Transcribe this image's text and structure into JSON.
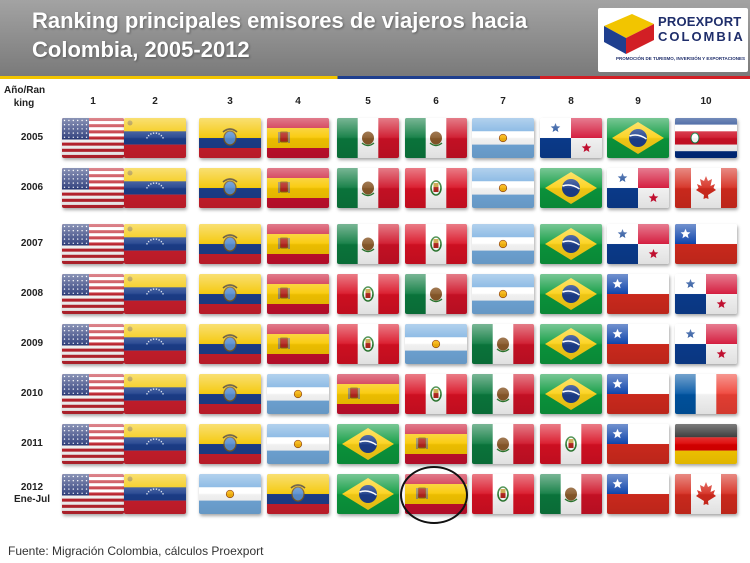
{
  "header": {
    "title": "Ranking principales emisores de viajeros hacia Colombia, 2005-2012",
    "logo_name": "PROEXPORT",
    "logo_sub": "COLOMBIA",
    "logo_tagline": "PROMOCIÓN DE TURISMO, INVERSIÓN Y EXPORTACIONES"
  },
  "table": {
    "corner_label": "Año/Ran king",
    "columns": [
      "1",
      "2",
      "3",
      "4",
      "5",
      "6",
      "7",
      "8",
      "9",
      "10"
    ],
    "rows": [
      {
        "label": "2005",
        "flags": [
          "usa",
          "venezuela",
          "ecuador",
          "spain",
          "mexico",
          "mexico",
          "argentina",
          "panama",
          "brazil",
          "costa-rica"
        ]
      },
      {
        "label": "2006",
        "flags": [
          "usa",
          "venezuela",
          "ecuador",
          "spain",
          "mexico",
          "peru",
          "argentina",
          "brazil",
          "panama",
          "canada"
        ]
      },
      {
        "label": "2007",
        "flags": [
          "usa",
          "venezuela",
          "ecuador",
          "spain",
          "mexico",
          "peru",
          "argentina",
          "brazil",
          "panama",
          "chile"
        ]
      },
      {
        "label": "2008",
        "flags": [
          "usa",
          "venezuela",
          "ecuador",
          "spain",
          "peru",
          "mexico",
          "argentina",
          "brazil",
          "chile",
          "panama"
        ]
      },
      {
        "label": "2009",
        "flags": [
          "usa",
          "venezuela",
          "ecuador",
          "spain",
          "peru",
          "argentina",
          "mexico",
          "brazil",
          "chile",
          "panama"
        ]
      },
      {
        "label": "2010",
        "flags": [
          "usa",
          "venezuela",
          "ecuador",
          "argentina",
          "spain",
          "peru",
          "mexico",
          "brazil",
          "chile",
          "france"
        ]
      },
      {
        "label": "2011",
        "flags": [
          "usa",
          "venezuela",
          "ecuador",
          "argentina",
          "brazil",
          "spain",
          "mexico",
          "peru",
          "chile",
          "germany"
        ]
      },
      {
        "label": "2012 Ene-Jul",
        "flags": [
          "usa",
          "venezuela",
          "argentina",
          "ecuador",
          "brazil",
          "spain",
          "peru",
          "mexico",
          "chile",
          "canada"
        ]
      }
    ],
    "highlighted_cell": {
      "row": "2012 Ene-Jul",
      "column": "6"
    }
  },
  "source": "Fuente:  Migración Colombia, cálculos Proexport",
  "colors": {
    "header_gray": "#8c8c8c",
    "brand_blue": "#1f2e6b",
    "highlight_ring": "#111111"
  }
}
